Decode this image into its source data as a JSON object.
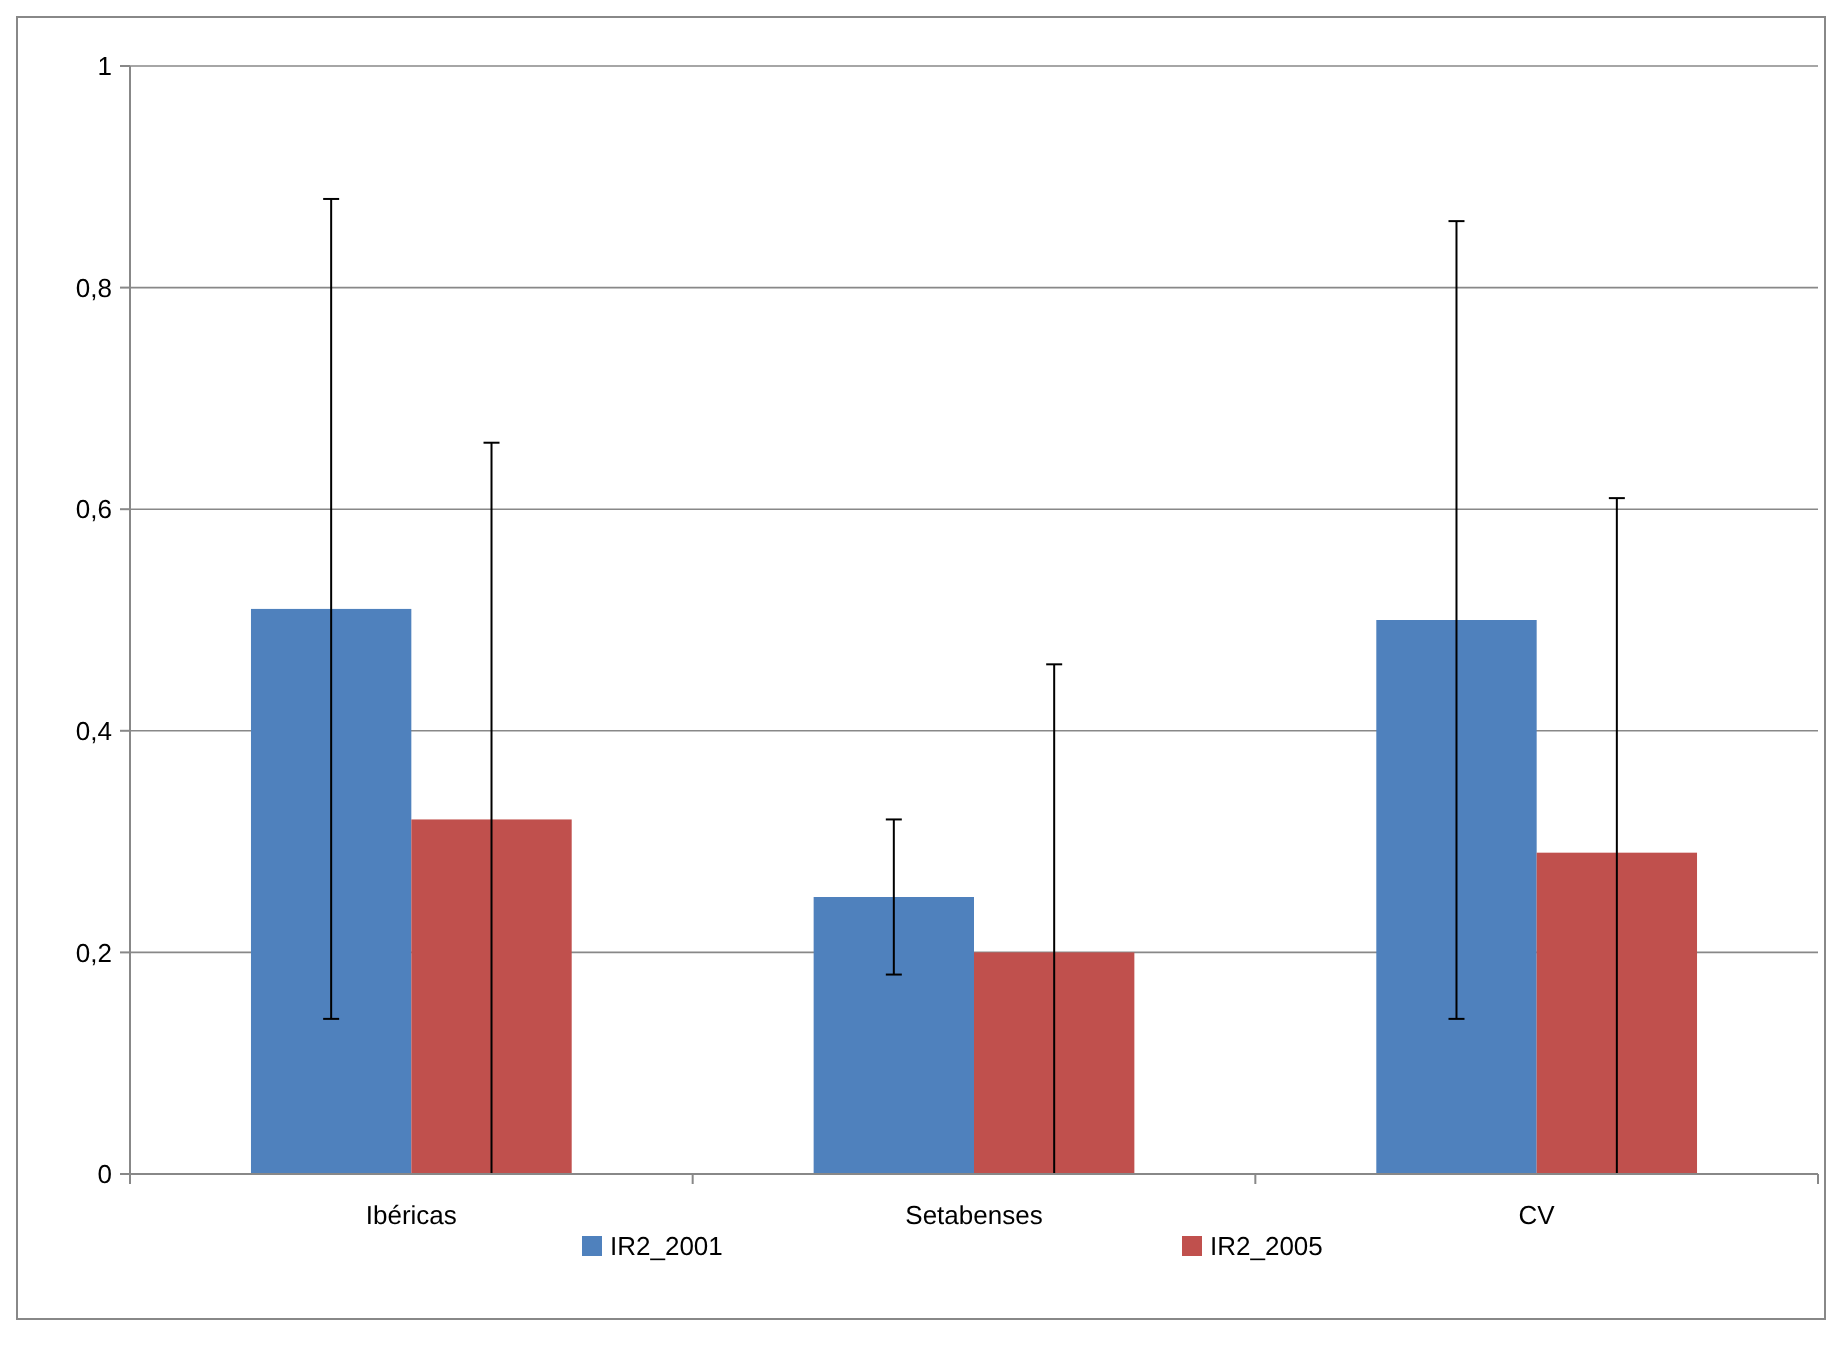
{
  "chart_data": {
    "type": "bar",
    "categories": [
      "Ibéricas",
      "Setabenses",
      "CV"
    ],
    "series": [
      {
        "name": "IR2_2001",
        "color": "#4f81bd",
        "values": [
          0.51,
          0.25,
          0.5
        ],
        "errors": [
          [
            0.14,
            0.88
          ],
          [
            0.18,
            0.32
          ],
          [
            0.14,
            0.86
          ]
        ]
      },
      {
        "name": "IR2_2005",
        "color": "#c0504d",
        "values": [
          0.32,
          0.2,
          0.29
        ],
        "errors": [
          [
            0,
            0.66
          ],
          [
            0,
            0.46
          ],
          [
            0,
            0.61
          ]
        ]
      }
    ],
    "ylim": [
      0,
      1
    ],
    "yticks": [
      0,
      {
        "value": 0.2,
        "label": "0,2"
      },
      {
        "value": 0.4,
        "label": "0,4"
      },
      {
        "value": 0.6,
        "label": "0,6"
      },
      {
        "value": 0.8,
        "label": "0,8"
      },
      1
    ],
    "grid": "y",
    "legend": "bottom"
  }
}
